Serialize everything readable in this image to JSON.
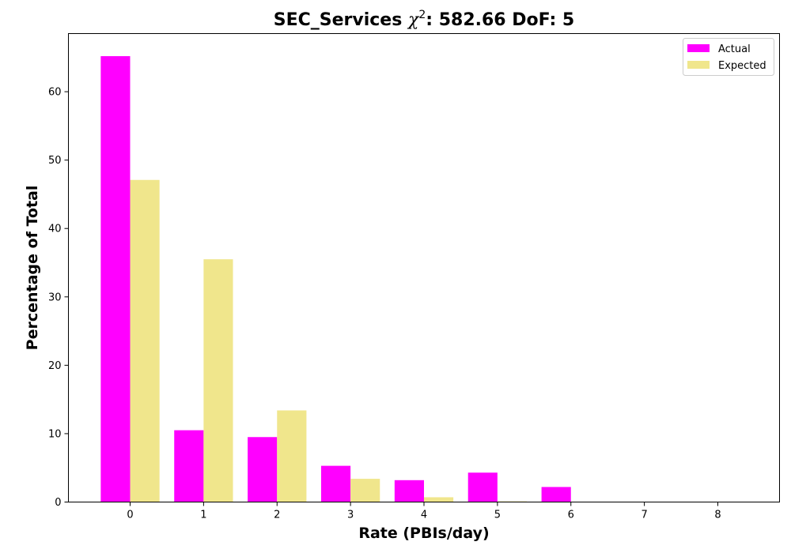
{
  "chart_data": {
    "type": "bar",
    "title_prefix": "SEC_Services ",
    "title_chi": "χ",
    "title_sup": "2",
    "title_suffix": ": 582.66 DoF: 5",
    "xlabel": "Rate (PBIs/day)",
    "ylabel": "Percentage of Total",
    "x_ticks": [
      "0",
      "1",
      "2",
      "3",
      "4",
      "5",
      "6",
      "7",
      "8"
    ],
    "y_ticks": [
      "0",
      "10",
      "20",
      "30",
      "40",
      "50",
      "60"
    ],
    "xlim": [
      -0.84,
      8.84
    ],
    "ylim": [
      0,
      68.5
    ],
    "grid": false,
    "legend_position": "top-right",
    "categories": [
      0,
      1,
      2,
      3,
      4,
      5,
      6
    ],
    "series": [
      {
        "name": "Actual",
        "color": "#ff00ff",
        "values": [
          65.2,
          10.5,
          9.5,
          5.3,
          3.2,
          4.3,
          2.2
        ]
      },
      {
        "name": "Expected",
        "color": "#f0e68c",
        "values": [
          47.1,
          35.5,
          13.4,
          3.4,
          0.7,
          0.1,
          0.0
        ]
      }
    ]
  }
}
